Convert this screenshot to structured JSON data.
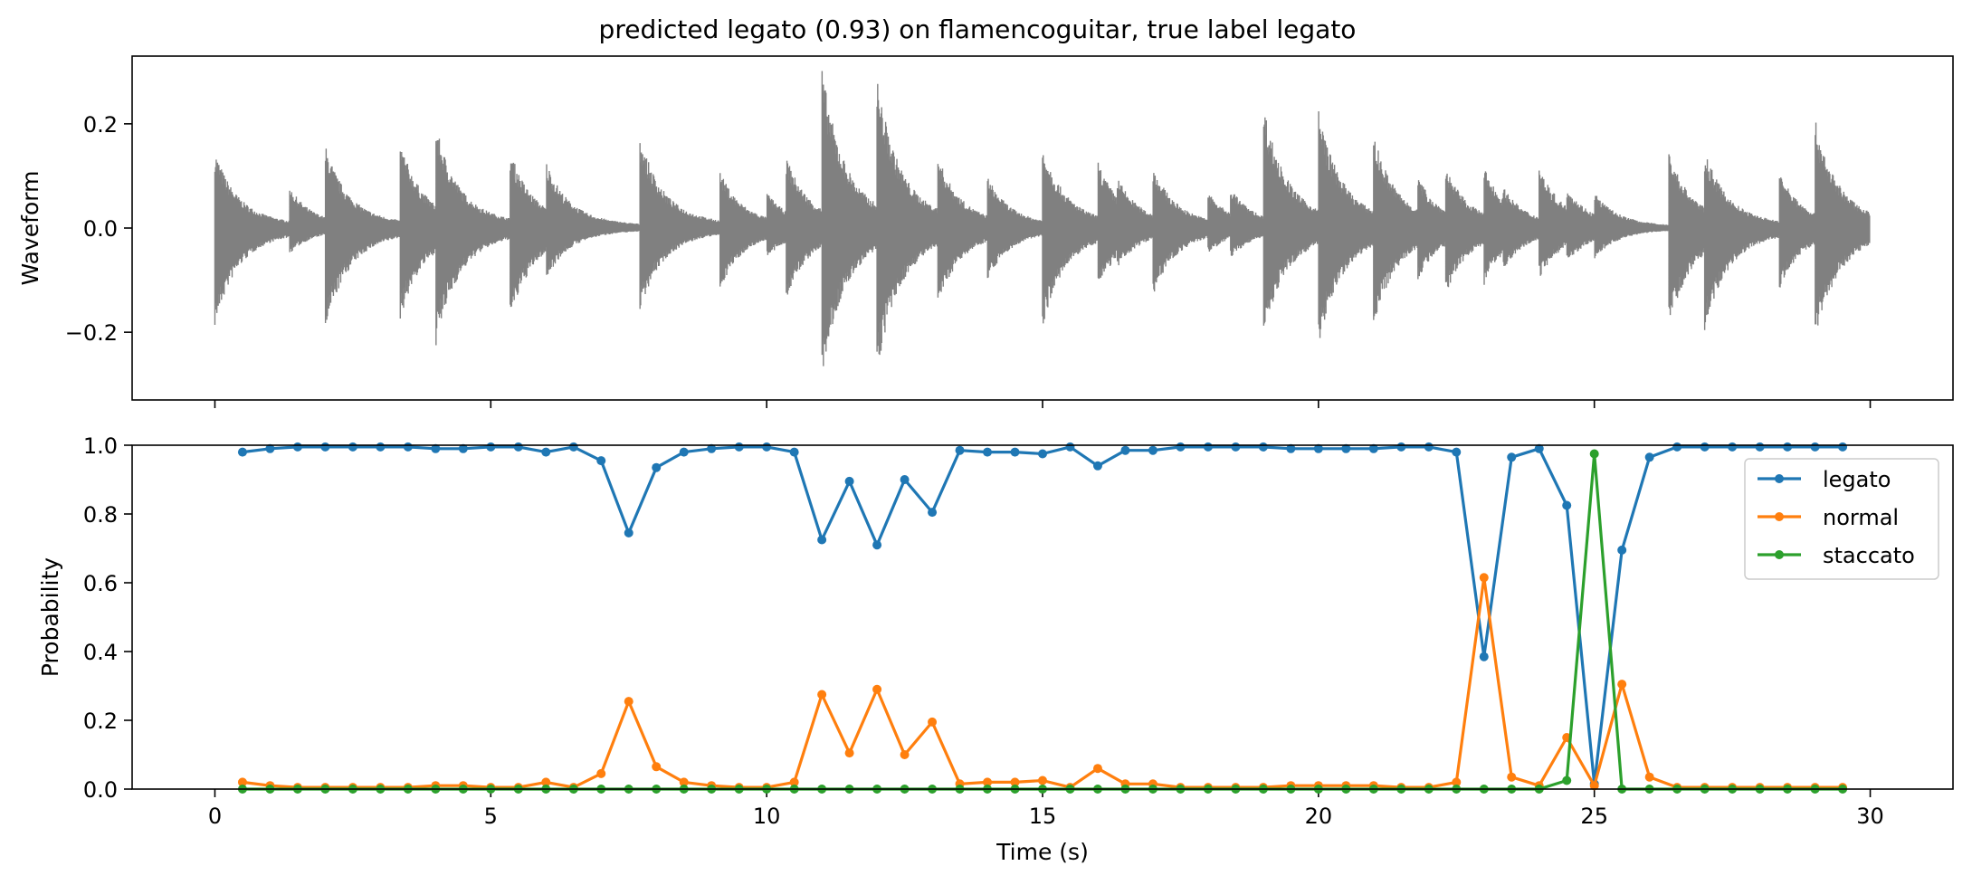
{
  "figure": {
    "title": "predicted legato (0.93) on flamencoguitar, true label legato"
  },
  "colors": {
    "waveform": "#808080",
    "legato": "#1f77b4",
    "normal": "#ff7f0e",
    "staccato": "#2ca02c",
    "axes": "#000000",
    "background": "#ffffff"
  },
  "chart_data": [
    {
      "type": "area",
      "panel": "top",
      "ylabel": "Waveform",
      "xlabel": "",
      "xlim": [
        -1.5,
        31.5
      ],
      "ylim": [
        -0.33,
        0.33
      ],
      "xticks": [
        0,
        5,
        10,
        15,
        20,
        25,
        30
      ],
      "show_xtick_labels": false,
      "yticks": [
        -0.2,
        0.0,
        0.2
      ],
      "ytick_labels": [
        "−0.2",
        "0.0",
        "0.2"
      ],
      "grid": false,
      "signal_span_s": [
        0.0,
        30.0
      ],
      "onsets": [
        {
          "t": 0.0,
          "amp_pos": 0.15,
          "amp_neg": -0.19
        },
        {
          "t": 1.35,
          "amp_pos": 0.08,
          "amp_neg": -0.05
        },
        {
          "t": 2.0,
          "amp_pos": 0.16,
          "amp_neg": -0.2
        },
        {
          "t": 3.35,
          "amp_pos": 0.17,
          "amp_neg": -0.18
        },
        {
          "t": 4.0,
          "amp_pos": 0.2,
          "amp_neg": -0.23
        },
        {
          "t": 5.35,
          "amp_pos": 0.15,
          "amp_neg": -0.18
        },
        {
          "t": 6.0,
          "amp_pos": 0.13,
          "amp_neg": -0.1
        },
        {
          "t": 7.7,
          "amp_pos": 0.18,
          "amp_neg": -0.16
        },
        {
          "t": 9.15,
          "amp_pos": 0.11,
          "amp_neg": -0.12
        },
        {
          "t": 10.0,
          "amp_pos": 0.07,
          "amp_neg": -0.06
        },
        {
          "t": 10.35,
          "amp_pos": 0.14,
          "amp_neg": -0.14
        },
        {
          "t": 11.0,
          "amp_pos": 0.31,
          "amp_neg": -0.29
        },
        {
          "t": 12.0,
          "amp_pos": 0.29,
          "amp_neg": -0.28
        },
        {
          "t": 13.1,
          "amp_pos": 0.14,
          "amp_neg": -0.15
        },
        {
          "t": 14.0,
          "amp_pos": 0.1,
          "amp_neg": -0.1
        },
        {
          "t": 15.0,
          "amp_pos": 0.16,
          "amp_neg": -0.19
        },
        {
          "t": 16.0,
          "amp_pos": 0.13,
          "amp_neg": -0.12
        },
        {
          "t": 16.35,
          "amp_pos": 0.1,
          "amp_neg": -0.08
        },
        {
          "t": 17.0,
          "amp_pos": 0.12,
          "amp_neg": -0.13
        },
        {
          "t": 18.0,
          "amp_pos": 0.07,
          "amp_neg": -0.05
        },
        {
          "t": 18.4,
          "amp_pos": 0.08,
          "amp_neg": -0.06
        },
        {
          "t": 19.0,
          "amp_pos": 0.24,
          "amp_neg": -0.21
        },
        {
          "t": 20.0,
          "amp_pos": 0.23,
          "amp_neg": -0.23
        },
        {
          "t": 21.0,
          "amp_pos": 0.18,
          "amp_neg": -0.19
        },
        {
          "t": 21.8,
          "amp_pos": 0.1,
          "amp_neg": -0.1
        },
        {
          "t": 22.3,
          "amp_pos": 0.12,
          "amp_neg": -0.13
        },
        {
          "t": 23.0,
          "amp_pos": 0.12,
          "amp_neg": -0.11
        },
        {
          "t": 23.35,
          "amp_pos": 0.08,
          "amp_neg": -0.08
        },
        {
          "t": 24.0,
          "amp_pos": 0.12,
          "amp_neg": -0.1
        },
        {
          "t": 24.5,
          "amp_pos": 0.08,
          "amp_neg": -0.07
        },
        {
          "t": 25.0,
          "amp_pos": 0.07,
          "amp_neg": -0.06
        },
        {
          "t": 26.35,
          "amp_pos": 0.15,
          "amp_neg": -0.19
        },
        {
          "t": 27.0,
          "amp_pos": 0.15,
          "amp_neg": -0.2
        },
        {
          "t": 28.35,
          "amp_pos": 0.11,
          "amp_neg": -0.12
        },
        {
          "t": 29.0,
          "amp_pos": 0.21,
          "amp_neg": -0.22
        }
      ]
    },
    {
      "type": "line",
      "panel": "bottom",
      "xlabel": "Time (s)",
      "ylabel": "Probability",
      "xlim": [
        -1.5,
        31.5
      ],
      "ylim": [
        0.0,
        1.0
      ],
      "xticks": [
        0,
        5,
        10,
        15,
        20,
        25,
        30
      ],
      "xtick_labels": [
        "0",
        "5",
        "10",
        "15",
        "20",
        "25",
        "30"
      ],
      "yticks": [
        0.0,
        0.2,
        0.4,
        0.6,
        0.8,
        1.0
      ],
      "ytick_labels": [
        "0.0",
        "0.2",
        "0.4",
        "0.6",
        "0.8",
        "1.0"
      ],
      "grid": false,
      "legend_position": "top-right",
      "x": [
        0.5,
        1.0,
        1.5,
        2.0,
        2.5,
        3.0,
        3.5,
        4.0,
        4.5,
        5.0,
        5.5,
        6.0,
        6.5,
        7.0,
        7.5,
        8.0,
        8.5,
        9.0,
        9.5,
        10.0,
        10.5,
        11.0,
        11.5,
        12.0,
        12.5,
        13.0,
        13.5,
        14.0,
        14.5,
        15.0,
        15.5,
        16.0,
        16.5,
        17.0,
        17.5,
        18.0,
        18.5,
        19.0,
        19.5,
        20.0,
        20.5,
        21.0,
        21.5,
        22.0,
        22.5,
        23.0,
        23.5,
        24.0,
        24.5,
        25.0,
        25.5,
        26.0,
        26.5,
        27.0,
        27.5,
        28.0,
        28.5,
        29.0,
        29.5
      ],
      "series": [
        {
          "name": "legato",
          "color": "#1f77b4",
          "values": [
            0.98,
            0.99,
            0.995,
            0.995,
            0.995,
            0.995,
            0.995,
            0.99,
            0.99,
            0.995,
            0.995,
            0.98,
            0.995,
            0.955,
            0.745,
            0.935,
            0.98,
            0.99,
            0.995,
            0.995,
            0.98,
            0.725,
            0.895,
            0.71,
            0.9,
            0.805,
            0.985,
            0.98,
            0.98,
            0.975,
            0.995,
            0.94,
            0.985,
            0.985,
            0.995,
            0.995,
            0.995,
            0.995,
            0.99,
            0.99,
            0.99,
            0.99,
            0.995,
            0.995,
            0.98,
            0.385,
            0.965,
            0.99,
            0.825,
            0.015,
            0.695,
            0.965,
            0.995,
            0.995,
            0.995,
            0.995,
            0.995,
            0.995,
            0.995
          ]
        },
        {
          "name": "normal",
          "color": "#ff7f0e",
          "values": [
            0.02,
            0.01,
            0.005,
            0.005,
            0.005,
            0.005,
            0.005,
            0.01,
            0.01,
            0.005,
            0.005,
            0.02,
            0.005,
            0.045,
            0.255,
            0.065,
            0.02,
            0.01,
            0.005,
            0.005,
            0.02,
            0.275,
            0.105,
            0.29,
            0.1,
            0.195,
            0.015,
            0.02,
            0.02,
            0.025,
            0.005,
            0.06,
            0.015,
            0.015,
            0.005,
            0.005,
            0.005,
            0.005,
            0.01,
            0.01,
            0.01,
            0.01,
            0.005,
            0.005,
            0.02,
            0.615,
            0.035,
            0.01,
            0.15,
            0.01,
            0.305,
            0.035,
            0.005,
            0.005,
            0.005,
            0.005,
            0.005,
            0.005,
            0.005
          ]
        },
        {
          "name": "staccato",
          "color": "#2ca02c",
          "values": [
            0,
            0,
            0,
            0,
            0,
            0,
            0,
            0,
            0,
            0,
            0,
            0,
            0,
            0,
            0,
            0,
            0,
            0,
            0,
            0,
            0,
            0,
            0,
            0,
            0,
            0,
            0,
            0,
            0,
            0,
            0,
            0,
            0,
            0,
            0,
            0,
            0,
            0,
            0,
            0,
            0,
            0,
            0,
            0,
            0,
            0,
            0,
            0,
            0.025,
            0.975,
            0.0,
            0,
            0,
            0,
            0,
            0,
            0,
            0,
            0
          ]
        }
      ]
    }
  ]
}
